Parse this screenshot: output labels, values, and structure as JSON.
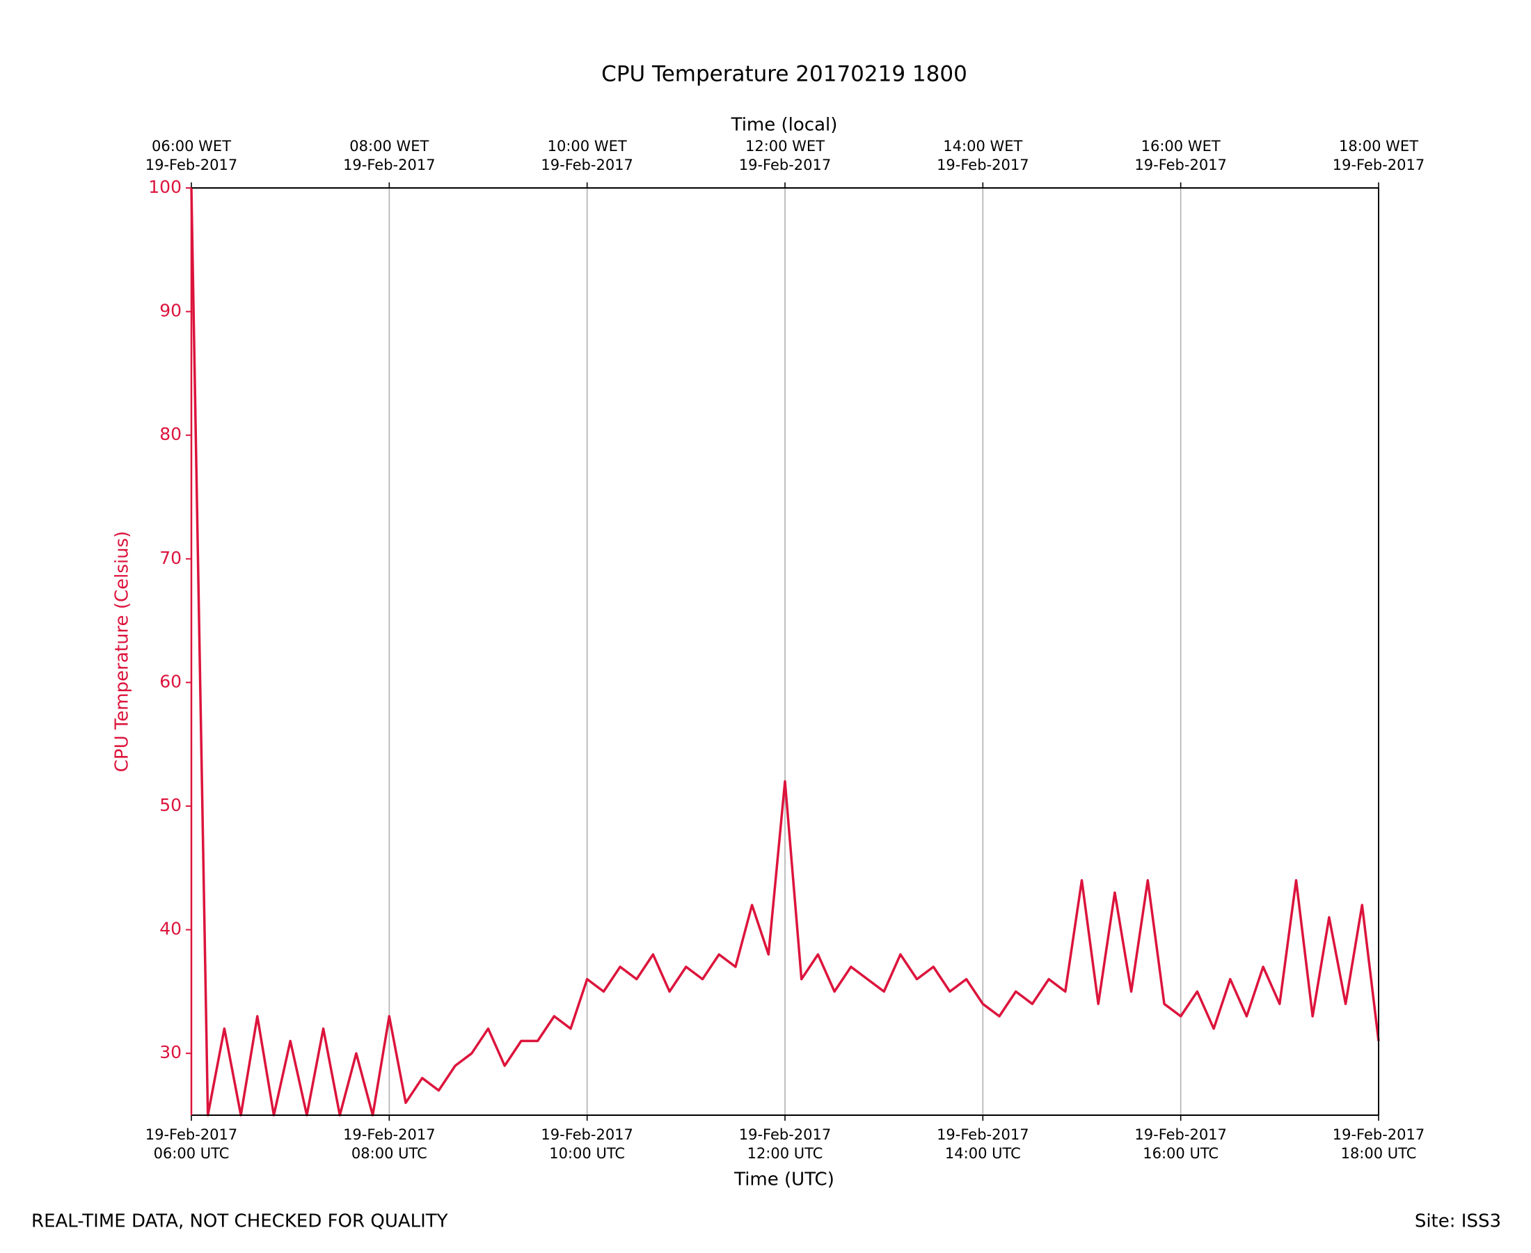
{
  "chart_data": {
    "type": "line",
    "title": "CPU Temperature 20170219 1800",
    "xlabel": "Time (UTC)",
    "x2label": "Time (local)",
    "ylabel": "CPU Temperature (Celsius)",
    "footnote": "REAL-TIME DATA, NOT CHECKED FOR QUALITY",
    "site": "Site: ISS3",
    "color": "#dc143c",
    "grid": true,
    "xlim": [
      "2017-02-19 06:00",
      "2017-02-19 18:00"
    ],
    "ylim": [
      25,
      100
    ],
    "yticks": [
      30,
      40,
      50,
      60,
      70,
      80,
      90,
      100
    ],
    "xticks": [
      {
        "value": "2017-02-19 06:00",
        "label": [
          "19-Feb-2017",
          "06:00 UTC"
        ]
      },
      {
        "value": "2017-02-19 08:00",
        "label": [
          "19-Feb-2017",
          "08:00 UTC"
        ]
      },
      {
        "value": "2017-02-19 10:00",
        "label": [
          "19-Feb-2017",
          "10:00 UTC"
        ]
      },
      {
        "value": "2017-02-19 12:00",
        "label": [
          "19-Feb-2017",
          "12:00 UTC"
        ]
      },
      {
        "value": "2017-02-19 14:00",
        "label": [
          "19-Feb-2017",
          "14:00 UTC"
        ]
      },
      {
        "value": "2017-02-19 16:00",
        "label": [
          "19-Feb-2017",
          "16:00 UTC"
        ]
      },
      {
        "value": "2017-02-19 18:00",
        "label": [
          "19-Feb-2017",
          "18:00 UTC"
        ]
      }
    ],
    "x2ticks": [
      {
        "value": "2017-02-19 06:00",
        "label": [
          "06:00 WET",
          "19-Feb-2017"
        ]
      },
      {
        "value": "2017-02-19 08:00",
        "label": [
          "08:00 WET",
          "19-Feb-2017"
        ]
      },
      {
        "value": "2017-02-19 10:00",
        "label": [
          "10:00 WET",
          "19-Feb-2017"
        ]
      },
      {
        "value": "2017-02-19 12:00",
        "label": [
          "12:00 WET",
          "19-Feb-2017"
        ]
      },
      {
        "value": "2017-02-19 14:00",
        "label": [
          "14:00 WET",
          "19-Feb-2017"
        ]
      },
      {
        "value": "2017-02-19 16:00",
        "label": [
          "16:00 WET",
          "19-Feb-2017"
        ]
      },
      {
        "value": "2017-02-19 18:00",
        "label": [
          "18:00 WET",
          "19-Feb-2017"
        ]
      }
    ],
    "x": [
      "2017-02-19 06:00",
      "2017-02-19 06:10",
      "2017-02-19 06:20",
      "2017-02-19 06:30",
      "2017-02-19 06:40",
      "2017-02-19 06:50",
      "2017-02-19 07:00",
      "2017-02-19 07:10",
      "2017-02-19 07:20",
      "2017-02-19 07:30",
      "2017-02-19 07:40",
      "2017-02-19 07:50",
      "2017-02-19 08:00",
      "2017-02-19 08:10",
      "2017-02-19 08:20",
      "2017-02-19 08:30",
      "2017-02-19 08:40",
      "2017-02-19 08:50",
      "2017-02-19 09:00",
      "2017-02-19 09:10",
      "2017-02-19 09:20",
      "2017-02-19 09:30",
      "2017-02-19 09:40",
      "2017-02-19 09:50",
      "2017-02-19 10:00",
      "2017-02-19 10:10",
      "2017-02-19 10:20",
      "2017-02-19 10:30",
      "2017-02-19 10:40",
      "2017-02-19 10:50",
      "2017-02-19 11:00",
      "2017-02-19 11:10",
      "2017-02-19 11:20",
      "2017-02-19 11:30",
      "2017-02-19 11:40",
      "2017-02-19 11:50",
      "2017-02-19 12:00",
      "2017-02-19 12:10",
      "2017-02-19 12:20",
      "2017-02-19 12:30",
      "2017-02-19 12:40",
      "2017-02-19 12:50",
      "2017-02-19 13:00",
      "2017-02-19 13:10",
      "2017-02-19 13:20",
      "2017-02-19 13:30",
      "2017-02-19 13:40",
      "2017-02-19 13:50",
      "2017-02-19 14:00",
      "2017-02-19 14:10",
      "2017-02-19 14:20",
      "2017-02-19 14:30",
      "2017-02-19 14:40",
      "2017-02-19 14:50",
      "2017-02-19 15:00",
      "2017-02-19 15:10",
      "2017-02-19 15:20",
      "2017-02-19 15:30",
      "2017-02-19 15:40",
      "2017-02-19 15:50",
      "2017-02-19 16:00",
      "2017-02-19 16:10",
      "2017-02-19 16:20",
      "2017-02-19 16:30",
      "2017-02-19 16:40",
      "2017-02-19 16:50",
      "2017-02-19 17:00",
      "2017-02-19 17:10",
      "2017-02-19 17:20",
      "2017-02-19 17:30",
      "2017-02-19 17:40",
      "2017-02-19 17:50",
      "2017-02-19 18:00"
    ],
    "values": [
      100,
      25,
      32,
      25,
      33,
      25,
      31,
      25,
      32,
      25,
      30,
      25,
      33,
      26,
      28,
      27,
      29,
      30,
      32,
      29,
      31,
      31,
      33,
      32,
      36,
      35,
      37,
      36,
      38,
      35,
      37,
      36,
      38,
      37,
      42,
      38,
      52,
      36,
      38,
      35,
      37,
      36,
      35,
      38,
      36,
      37,
      35,
      36,
      34,
      33,
      35,
      34,
      36,
      35,
      44,
      34,
      43,
      35,
      44,
      34,
      33,
      35,
      32,
      36,
      33,
      37,
      34,
      44,
      33,
      41,
      34,
      42,
      31
    ]
  }
}
